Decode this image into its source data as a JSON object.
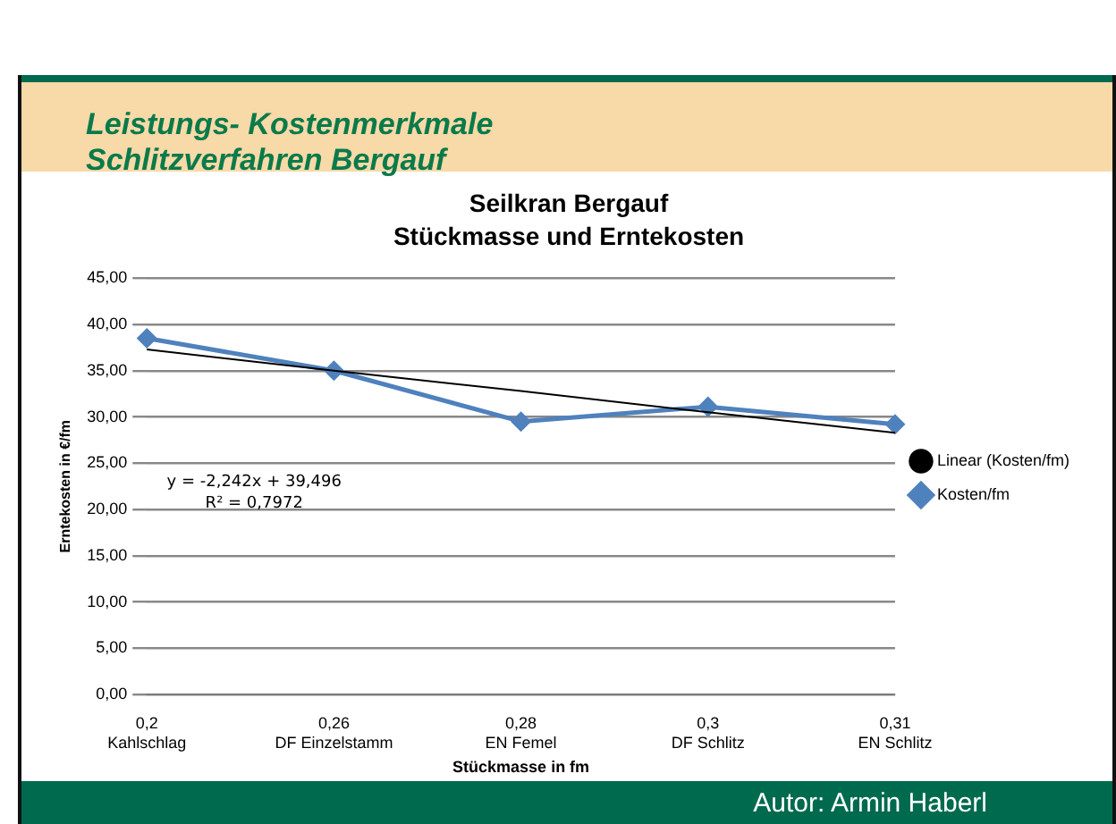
{
  "chart_data": {
    "type": "line",
    "title": "Seilkran Bergauf",
    "subtitle": "Stückmasse und Erntekosten",
    "xlabel": "Stückmasse in fm",
    "ylabel": "Erntekosten in €/fm",
    "categories": [
      "0,2\nKahlschlag",
      "0,26\nDF Einzelstamm",
      "0,28\nEN Femel",
      "0,3\nDF Schlitz",
      "0,31\nEN Schlitz"
    ],
    "series": [
      {
        "name": "Kosten/fm",
        "color": "#4f81bd",
        "values": [
          38.5,
          35.0,
          29.5,
          31.1,
          29.2
        ]
      },
      {
        "name": "Linear (Kosten/fm)",
        "color": "#000000",
        "values": [
          37.3,
          35.0,
          32.8,
          30.5,
          28.3
        ],
        "marker": "none"
      }
    ],
    "ylim": [
      0,
      45
    ],
    "yticks": [
      {
        "value": 0,
        "label": "0,00"
      },
      {
        "value": 5,
        "label": "5,00"
      },
      {
        "value": 10,
        "label": "10,00"
      },
      {
        "value": 15,
        "label": "15,00"
      },
      {
        "value": 20,
        "label": "20,00"
      },
      {
        "value": 25,
        "label": "25,00"
      },
      {
        "value": 30,
        "label": "30,00"
      },
      {
        "value": 35,
        "label": "35,00"
      },
      {
        "value": 40,
        "label": "40,00"
      },
      {
        "value": 45,
        "label": "45,00"
      }
    ],
    "grid": "y",
    "legend": "right",
    "marker": "diamond",
    "line_style": "solid",
    "annotations": [
      "Leistungs- Kostenmerkmale\nSchlitzverfahren Bergauf",
      "y = -2,242x + 39,496\nR² = 0,7972",
      "Autor: Armin Haberl"
    ]
  }
}
